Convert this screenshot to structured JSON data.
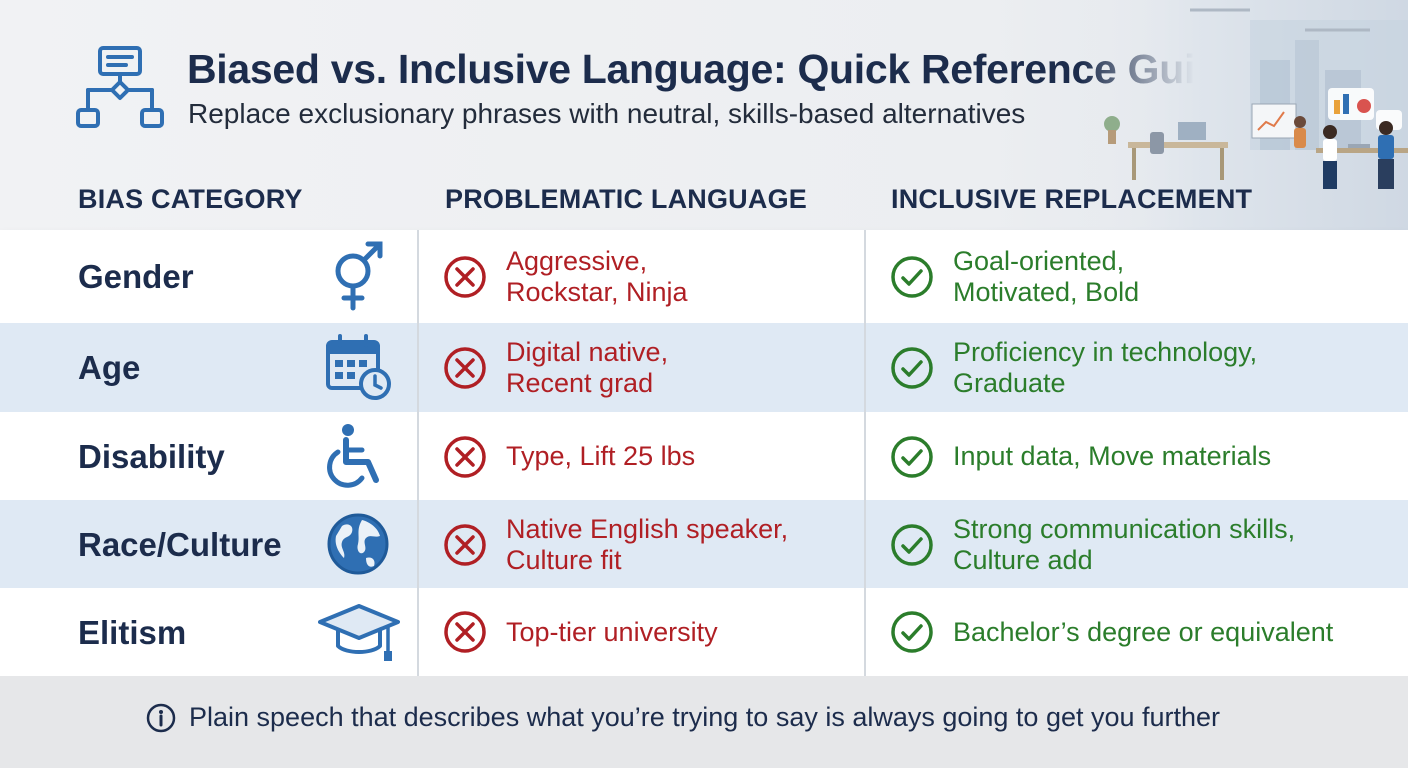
{
  "header": {
    "title": "Biased vs. Inclusive Language: Quick Reference Guide",
    "subtitle": "Replace exclusionary phrases with neutral, skills-based alternatives",
    "icon": "flowchart-icon"
  },
  "columns": {
    "category": "BIAS CATEGORY",
    "problematic": "PROBLEMATIC LANGUAGE",
    "inclusive": "INCLUSIVE REPLACEMENT"
  },
  "rows": [
    {
      "category": "Gender",
      "icon": "gender-icon",
      "bad": [
        "Aggressive,",
        "Rockstar, Ninja"
      ],
      "good": [
        "Goal-oriented,",
        "Motivated, Bold"
      ]
    },
    {
      "category": "Age",
      "icon": "calendar-clock-icon",
      "bad": [
        "Digital native,",
        "Recent grad"
      ],
      "good": [
        "Proficiency in technology,",
        "Graduate"
      ]
    },
    {
      "category": "Disability",
      "icon": "wheelchair-icon",
      "bad": [
        "Type, Lift 25 lbs"
      ],
      "good": [
        "Input data, Move materials"
      ]
    },
    {
      "category": "Race/Culture",
      "icon": "globe-icon",
      "bad": [
        "Native English speaker,",
        "Culture fit"
      ],
      "good": [
        "Strong communication skills,",
        "Culture add"
      ]
    },
    {
      "category": "Elitism",
      "icon": "graduation-cap-icon",
      "bad": [
        "Top-tier university"
      ],
      "good": [
        "Bachelor’s degree or equivalent"
      ]
    }
  ],
  "footer": {
    "icon": "info-icon",
    "text": "Plain speech that describes what you’re trying to say is always going to get you further"
  },
  "colors": {
    "navy": "#1c2c4c",
    "icon_blue": "#2f6fb3",
    "bad_red": "#b01f24",
    "good_green": "#2b7d2b",
    "row_blue": "#dfe9f4"
  }
}
